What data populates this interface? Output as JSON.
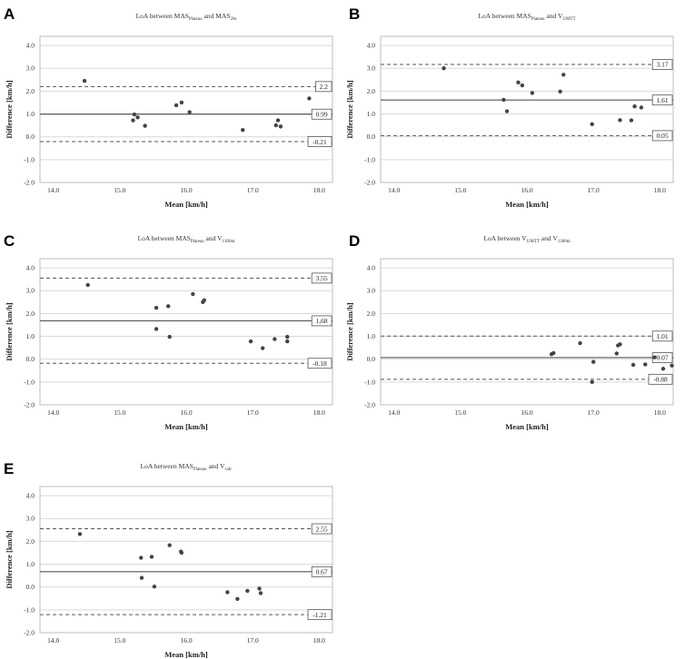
{
  "chart_data": [
    {
      "panel": "A",
      "type": "scatter",
      "title": {
        "main1": "LoA between MAS",
        "sub1": "Plateau",
        "main2": " and MAS",
        "sub2": "20s"
      },
      "xlabel": "Mean [km/h]",
      "ylabel": "Difference [km/h]",
      "xlim": [
        13.8,
        18.2
      ],
      "ylim": [
        -2.0,
        4.4
      ],
      "xticks": [
        "14.0",
        "15.0",
        "16.0",
        "17.0",
        "18.0"
      ],
      "yticks": [
        "-2.0",
        "-1.0",
        "0.0",
        "1.0",
        "2.0",
        "3.0",
        "4.0"
      ],
      "lines": {
        "upper": 2.2,
        "mean": 0.99,
        "lower": -0.21
      },
      "line_labels": {
        "upper": "2.2",
        "mean": "0.99",
        "lower": "-0.21"
      },
      "points": [
        [
          14.47,
          2.45
        ],
        [
          15.2,
          0.72
        ],
        [
          15.22,
          0.98
        ],
        [
          15.27,
          0.85
        ],
        [
          15.38,
          0.48
        ],
        [
          15.85,
          1.38
        ],
        [
          15.93,
          1.5
        ],
        [
          16.05,
          1.08
        ],
        [
          16.85,
          0.3
        ],
        [
          17.35,
          0.5
        ],
        [
          17.38,
          0.72
        ],
        [
          17.42,
          0.45
        ],
        [
          17.85,
          1.68
        ]
      ]
    },
    {
      "panel": "B",
      "type": "scatter",
      "title": {
        "main1": "LoA between MAS",
        "sub1": "Plateau",
        "main2": " and V",
        "sub2": "UMTT"
      },
      "xlabel": "Mean [km/h]",
      "ylabel": "Difference [km/h]",
      "xlim": [
        13.8,
        18.2
      ],
      "ylim": [
        -2.0,
        4.4
      ],
      "xticks": [
        "14.0",
        "15.0",
        "16.0",
        "17.0",
        "18.0"
      ],
      "yticks": [
        "-2.0",
        "-1.0",
        "0.0",
        "1.0",
        "2.0",
        "3.0",
        "4.0"
      ],
      "lines": {
        "upper": 3.17,
        "mean": 1.61,
        "lower": 0.05
      },
      "line_labels": {
        "upper": "3.17",
        "mean": "1.61",
        "lower": "0.05"
      },
      "points": [
        [
          14.75,
          3.0
        ],
        [
          15.65,
          1.62
        ],
        [
          15.7,
          1.12
        ],
        [
          15.87,
          2.38
        ],
        [
          15.93,
          2.25
        ],
        [
          16.08,
          1.92
        ],
        [
          16.5,
          1.98
        ],
        [
          16.55,
          2.72
        ],
        [
          16.98,
          0.55
        ],
        [
          17.4,
          0.73
        ],
        [
          17.57,
          0.72
        ],
        [
          17.62,
          1.33
        ],
        [
          17.72,
          1.28
        ]
      ]
    },
    {
      "panel": "C",
      "type": "scatter",
      "title": {
        "main1": "LoA between MAS",
        "sub1": "Plateau",
        "main2": " and V",
        "sub2": "1300m"
      },
      "xlabel": "Mean [km/h]",
      "ylabel": "Difference [km/h]",
      "xlim": [
        13.8,
        18.2
      ],
      "ylim": [
        -2.0,
        4.4
      ],
      "xticks": [
        "14.0",
        "15.0",
        "16.0",
        "17.0",
        "18.0"
      ],
      "yticks": [
        "-2.0",
        "-1.0",
        "0.0",
        "1.0",
        "2.0",
        "3.0",
        "4.0"
      ],
      "lines": {
        "upper": 3.55,
        "mean": 1.68,
        "lower": -0.18
      },
      "line_labels": {
        "upper": "3.55",
        "mean": "1,68",
        "lower": "-0.18"
      },
      "points": [
        [
          14.52,
          3.25
        ],
        [
          15.55,
          2.25
        ],
        [
          15.55,
          1.32
        ],
        [
          15.73,
          2.32
        ],
        [
          15.75,
          0.98
        ],
        [
          16.1,
          2.85
        ],
        [
          16.25,
          2.5
        ],
        [
          16.27,
          2.58
        ],
        [
          16.97,
          0.78
        ],
        [
          17.15,
          0.48
        ],
        [
          17.33,
          0.88
        ],
        [
          17.52,
          0.98
        ],
        [
          17.52,
          0.78
        ]
      ]
    },
    {
      "panel": "D",
      "type": "scatter",
      "title": {
        "main1": "LoA between V",
        "sub1": "UMTT",
        "main2": " and V",
        "sub2": "1300m"
      },
      "xlabel": "Mean [km/h]",
      "ylabel": "Difference [km/h]",
      "xlim": [
        13.8,
        18.2
      ],
      "ylim": [
        -2.0,
        4.4
      ],
      "xticks": [
        "14.0",
        "15.0",
        "16.0",
        "17.0",
        "18.0"
      ],
      "yticks": [
        "-2.0",
        "-1.0",
        "0.0",
        "1.0",
        "2.0",
        "3.0",
        "4.0"
      ],
      "lines": {
        "upper": 1.01,
        "mean": 0.07,
        "lower": -0.88
      },
      "line_labels": {
        "upper": "1.01",
        "mean": "0.07",
        "lower": "-0.88"
      },
      "points": [
        [
          16.37,
          0.22
        ],
        [
          16.4,
          0.27
        ],
        [
          16.8,
          0.7
        ],
        [
          17.0,
          -0.12
        ],
        [
          16.98,
          -1.0
        ],
        [
          17.35,
          0.25
        ],
        [
          17.37,
          0.6
        ],
        [
          17.4,
          0.65
        ],
        [
          17.6,
          -0.25
        ],
        [
          17.78,
          -0.23
        ],
        [
          17.92,
          0.08
        ],
        [
          18.05,
          -0.42
        ],
        [
          18.18,
          -0.28
        ]
      ]
    },
    {
      "panel": "E",
      "type": "scatter",
      "title": {
        "main1": "LoA between MAS",
        "sub1": "Plateau",
        "main2": " and V",
        "sub2": "calc"
      },
      "xlabel": "Mean [km/h]",
      "ylabel": "Difference [km/h]",
      "xlim": [
        13.8,
        18.2
      ],
      "ylim": [
        -2.0,
        4.4
      ],
      "xticks": [
        "14.0",
        "15.0",
        "16.0",
        "17.0",
        "18.0"
      ],
      "yticks": [
        "-2.0",
        "-1.0",
        "0.0",
        "1.0",
        "2.0",
        "3.0",
        "4.0"
      ],
      "lines": {
        "upper": 2.55,
        "mean": 0.67,
        "lower": -1.21
      },
      "line_labels": {
        "upper": "2.55",
        "mean": "0.67",
        "lower": "-1.21"
      },
      "points": [
        [
          14.4,
          2.32
        ],
        [
          15.32,
          1.28
        ],
        [
          15.33,
          0.4
        ],
        [
          15.48,
          1.32
        ],
        [
          15.52,
          0.02
        ],
        [
          15.75,
          1.83
        ],
        [
          15.92,
          1.55
        ],
        [
          15.93,
          1.5
        ],
        [
          16.62,
          -0.23
        ],
        [
          16.77,
          -0.52
        ],
        [
          16.92,
          -0.17
        ],
        [
          17.1,
          -0.07
        ],
        [
          17.12,
          -0.27
        ]
      ]
    }
  ]
}
